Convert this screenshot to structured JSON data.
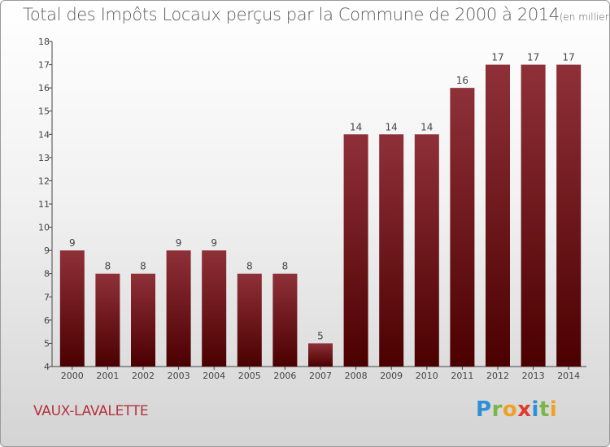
{
  "title": "Total des Impôts Locaux perçus par la Commune de 2000 à 2014",
  "unit": "(en milliers d'€)",
  "commune": "VAUX-LAVALETTE",
  "brand": {
    "letters": [
      {
        "ch": "P",
        "color": "#2e8fd6"
      },
      {
        "ch": "r",
        "color": "#7ab648"
      },
      {
        "ch": "o",
        "color": "#f0a023"
      },
      {
        "ch": "x",
        "color": "#e13b2e"
      },
      {
        "ch": "i",
        "color": "#2e8fd6"
      },
      {
        "ch": "t",
        "color": "#7ab648"
      },
      {
        "ch": "i",
        "color": "#f0a023"
      }
    ]
  },
  "colors": {
    "bar_top": "#8f3038",
    "bar_bottom": "#4b0000",
    "axis": "#444444",
    "text": "#444444"
  },
  "chart_data": {
    "type": "bar",
    "title": "Total des Impôts Locaux perçus par la Commune de 2000 à 2014",
    "xlabel": "",
    "ylabel": "en milliers d'€",
    "categories": [
      "2000",
      "2001",
      "2002",
      "2003",
      "2004",
      "2005",
      "2006",
      "2007",
      "2008",
      "2009",
      "2010",
      "2011",
      "2012",
      "2013",
      "2014"
    ],
    "values": [
      9,
      8,
      8,
      9,
      9,
      8,
      8,
      5,
      14,
      14,
      14,
      16,
      17,
      17,
      17
    ],
    "ylim": [
      4,
      18
    ],
    "yticks": [
      4,
      5,
      6,
      7,
      8,
      9,
      10,
      11,
      12,
      13,
      14,
      15,
      16,
      17,
      18
    ],
    "grid": false,
    "data_labels": true
  }
}
